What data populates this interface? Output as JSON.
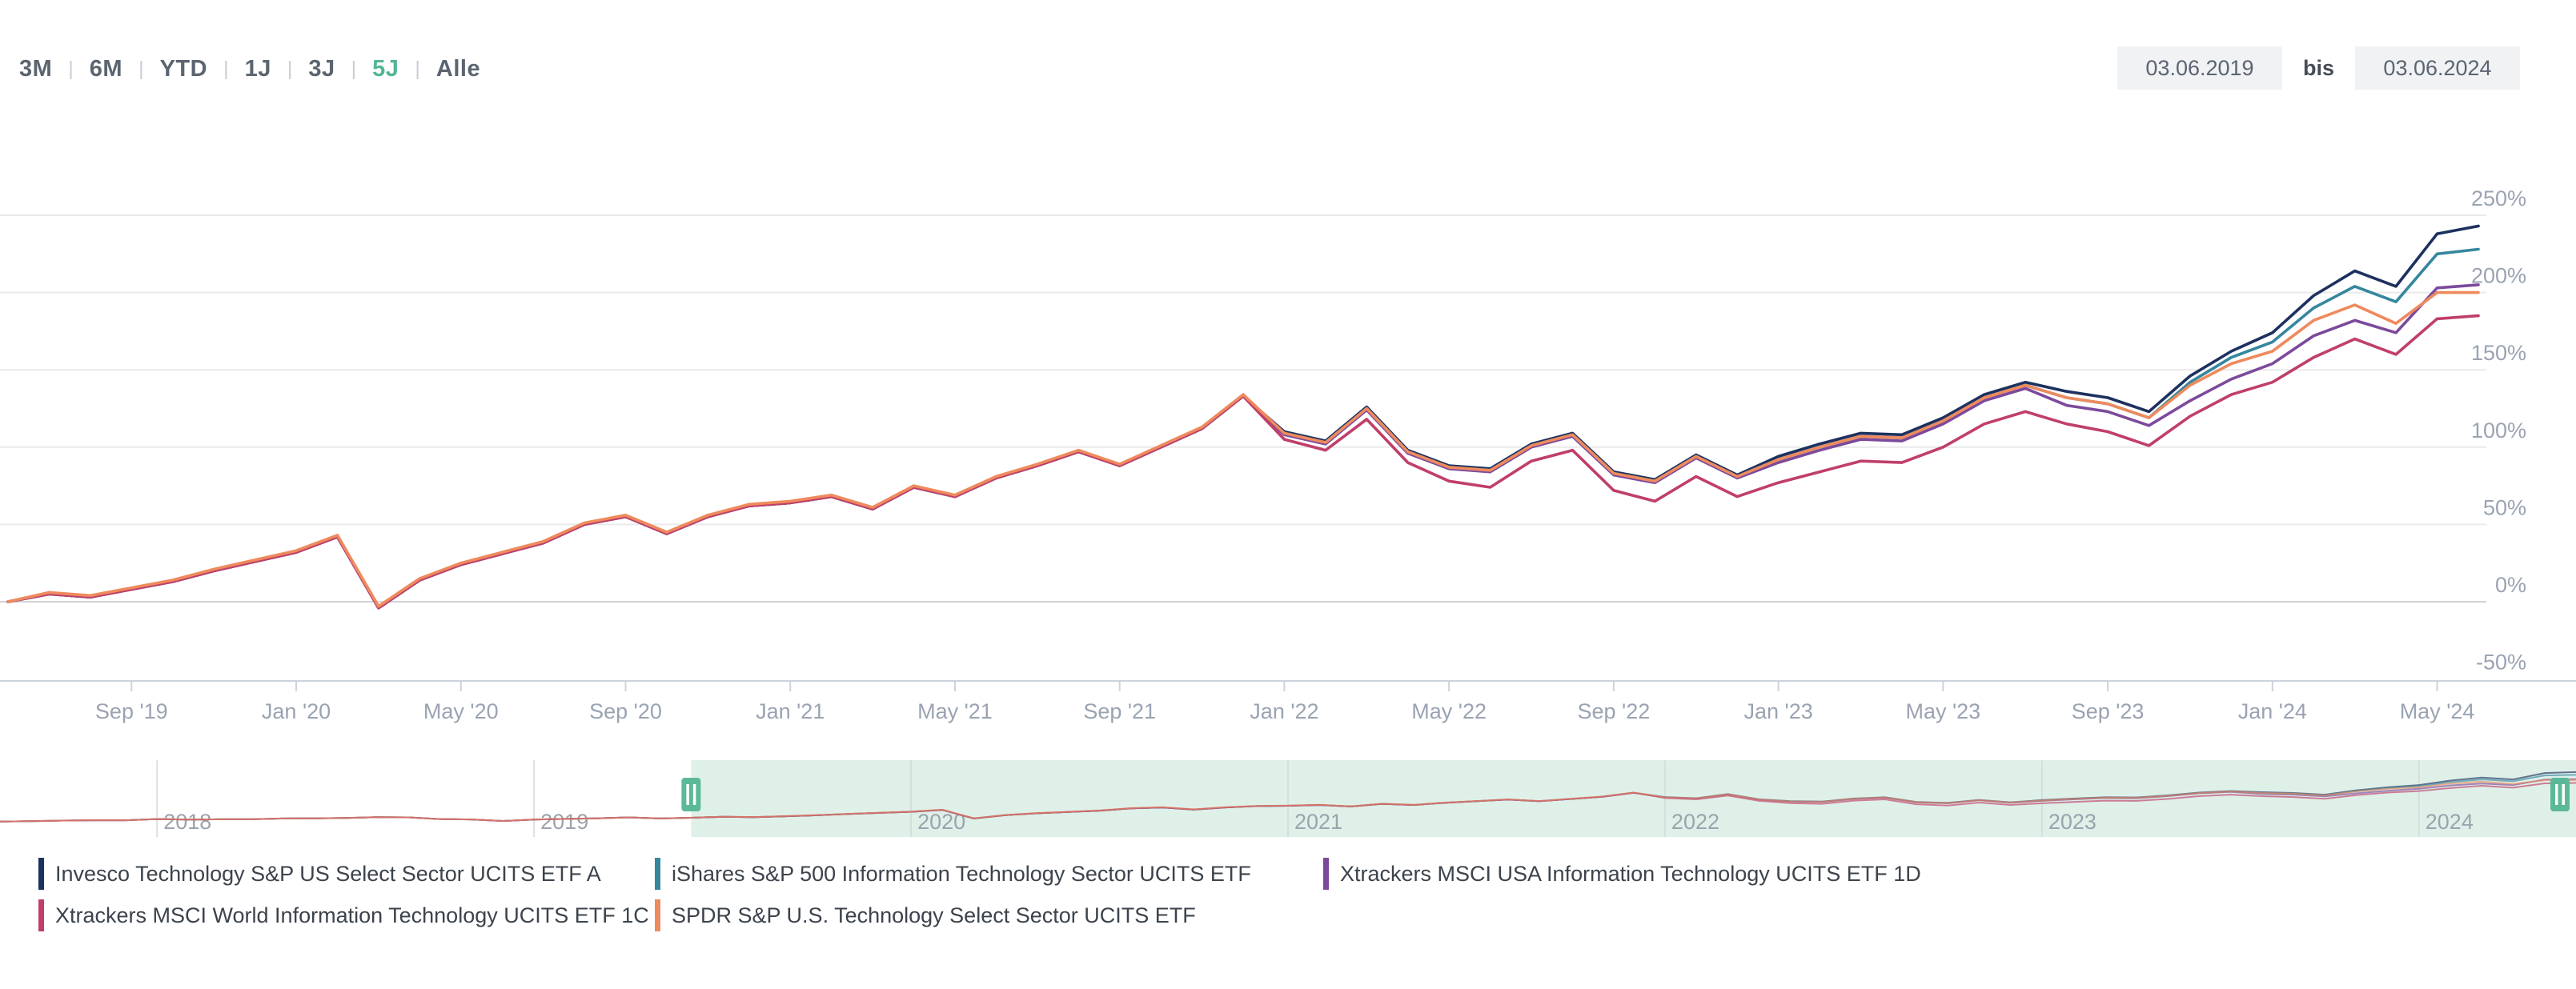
{
  "header": {
    "range_buttons": [
      "3M",
      "6M",
      "YTD",
      "1J",
      "3J",
      "5J",
      "Alle"
    ],
    "active_range": "5J",
    "date_from": "03.06.2019",
    "date_separator": "bis",
    "date_to": "03.06.2024",
    "accent_color": "#53b793"
  },
  "chart_data": {
    "type": "line",
    "unit": "%",
    "start_month": "2019-06",
    "end_month": "2024-06",
    "grid_on": true,
    "ylim": [
      -50,
      311
    ],
    "ytick_labels": [
      "250%",
      "200%",
      "150%",
      "100%",
      "50%",
      "0%",
      "-50%"
    ],
    "ytick_values": [
      250,
      200,
      150,
      100,
      50,
      0,
      -50
    ],
    "xtick_labels": [
      "Sep '19",
      "Jan '20",
      "May '20",
      "Sep '20",
      "Jan '21",
      "May '21",
      "Sep '21",
      "Jan '22",
      "May '22",
      "Sep '22",
      "Jan '23",
      "May '23",
      "Sep '23",
      "Jan '24",
      "May '24"
    ],
    "xtick_month_offsets": [
      3,
      7,
      11,
      15,
      19,
      23,
      27,
      31,
      35,
      39,
      43,
      47,
      51,
      55,
      59
    ],
    "series": [
      {
        "name": "Invesco Technology S&P US Select Sector UCITS ETF A",
        "color": "#1d3160",
        "values": [
          0,
          5,
          3,
          8,
          13,
          20,
          26,
          32,
          42,
          -4,
          14,
          24,
          31,
          38,
          50,
          55,
          44,
          55,
          62,
          64,
          68,
          60,
          74,
          68,
          80,
          88,
          97,
          88,
          100,
          112,
          133,
          110,
          104,
          126,
          98,
          88,
          86,
          102,
          109,
          84,
          79,
          95,
          82,
          94,
          102,
          109,
          108,
          119,
          134,
          142,
          136,
          132,
          123,
          146,
          162,
          174,
          198,
          214,
          204,
          238,
          243
        ]
      },
      {
        "name": "iShares S&P 500 Information Technology Sector UCITS ETF",
        "color": "#35879e",
        "values": [
          0,
          5,
          3,
          8,
          13,
          20,
          26,
          32,
          42,
          -4,
          14,
          24,
          31,
          38,
          50,
          55,
          44,
          55,
          62,
          64,
          68,
          60,
          74,
          68,
          80,
          88,
          97,
          88,
          100,
          112,
          133,
          109,
          103,
          125,
          97,
          87,
          85,
          101,
          108,
          83,
          78,
          94,
          81,
          92,
          100,
          107,
          106,
          117,
          132,
          140,
          132,
          128,
          119,
          142,
          158,
          168,
          190,
          204,
          194,
          225,
          228
        ]
      },
      {
        "name": "Xtrackers MSCI USA Information Technology UCITS ETF 1D",
        "color": "#7c4a9c",
        "values": [
          0,
          5,
          3,
          8,
          13,
          20,
          26,
          32,
          42,
          -4,
          14,
          24,
          31,
          38,
          50,
          55,
          44,
          55,
          62,
          64,
          68,
          60,
          74,
          68,
          80,
          88,
          97,
          88,
          100,
          112,
          133,
          108,
          102,
          124,
          96,
          86,
          84,
          100,
          107,
          82,
          77,
          93,
          80,
          90,
          98,
          105,
          104,
          115,
          130,
          138,
          127,
          123,
          114,
          130,
          144,
          154,
          172,
          182,
          174,
          203,
          205
        ]
      },
      {
        "name": "Xtrackers MSCI World Information Technology UCITS ETF 1C",
        "color": "#c03f6a",
        "values": [
          0,
          5,
          3,
          8,
          13,
          20,
          26,
          32,
          42,
          -4,
          14,
          24,
          31,
          38,
          50,
          55,
          44,
          55,
          62,
          64,
          68,
          60,
          74,
          68,
          80,
          88,
          97,
          88,
          100,
          112,
          133,
          105,
          98,
          118,
          90,
          78,
          74,
          91,
          98,
          72,
          65,
          81,
          68,
          77,
          84,
          91,
          90,
          100,
          115,
          123,
          115,
          110,
          101,
          120,
          134,
          142,
          158,
          170,
          160,
          183,
          185
        ]
      },
      {
        "name": "SPDR S&P U.S. Technology Select Sector UCITS ETF",
        "color": "#ee8a5d",
        "values": [
          0,
          6,
          4,
          9,
          14,
          21,
          27,
          33,
          43,
          -3,
          15,
          25,
          32,
          39,
          51,
          56,
          45,
          56,
          63,
          65,
          69,
          61,
          75,
          69,
          81,
          89,
          98,
          89,
          101,
          113,
          134,
          109,
          103,
          125,
          97,
          87,
          85,
          101,
          108,
          83,
          78,
          94,
          81,
          92,
          100,
          107,
          106,
          117,
          132,
          140,
          132,
          128,
          119,
          140,
          154,
          162,
          182,
          192,
          180,
          200,
          200
        ]
      }
    ],
    "navigator": {
      "start_month": "2017-08",
      "pre_values": [
        -20,
        -18,
        -15,
        -13,
        -13,
        -7,
        -10,
        -8,
        -8,
        -4,
        -3,
        -1,
        3,
        2,
        -7,
        -9,
        -17,
        -10,
        -6,
        -3,
        2,
        -4
      ],
      "year_labels": [
        "2018",
        "2019",
        "2020",
        "2021",
        "2022",
        "2023",
        "2024"
      ],
      "selection_start": "2019-06",
      "selection_color": "#d9ede5",
      "handle_color": "#5cb997"
    }
  }
}
